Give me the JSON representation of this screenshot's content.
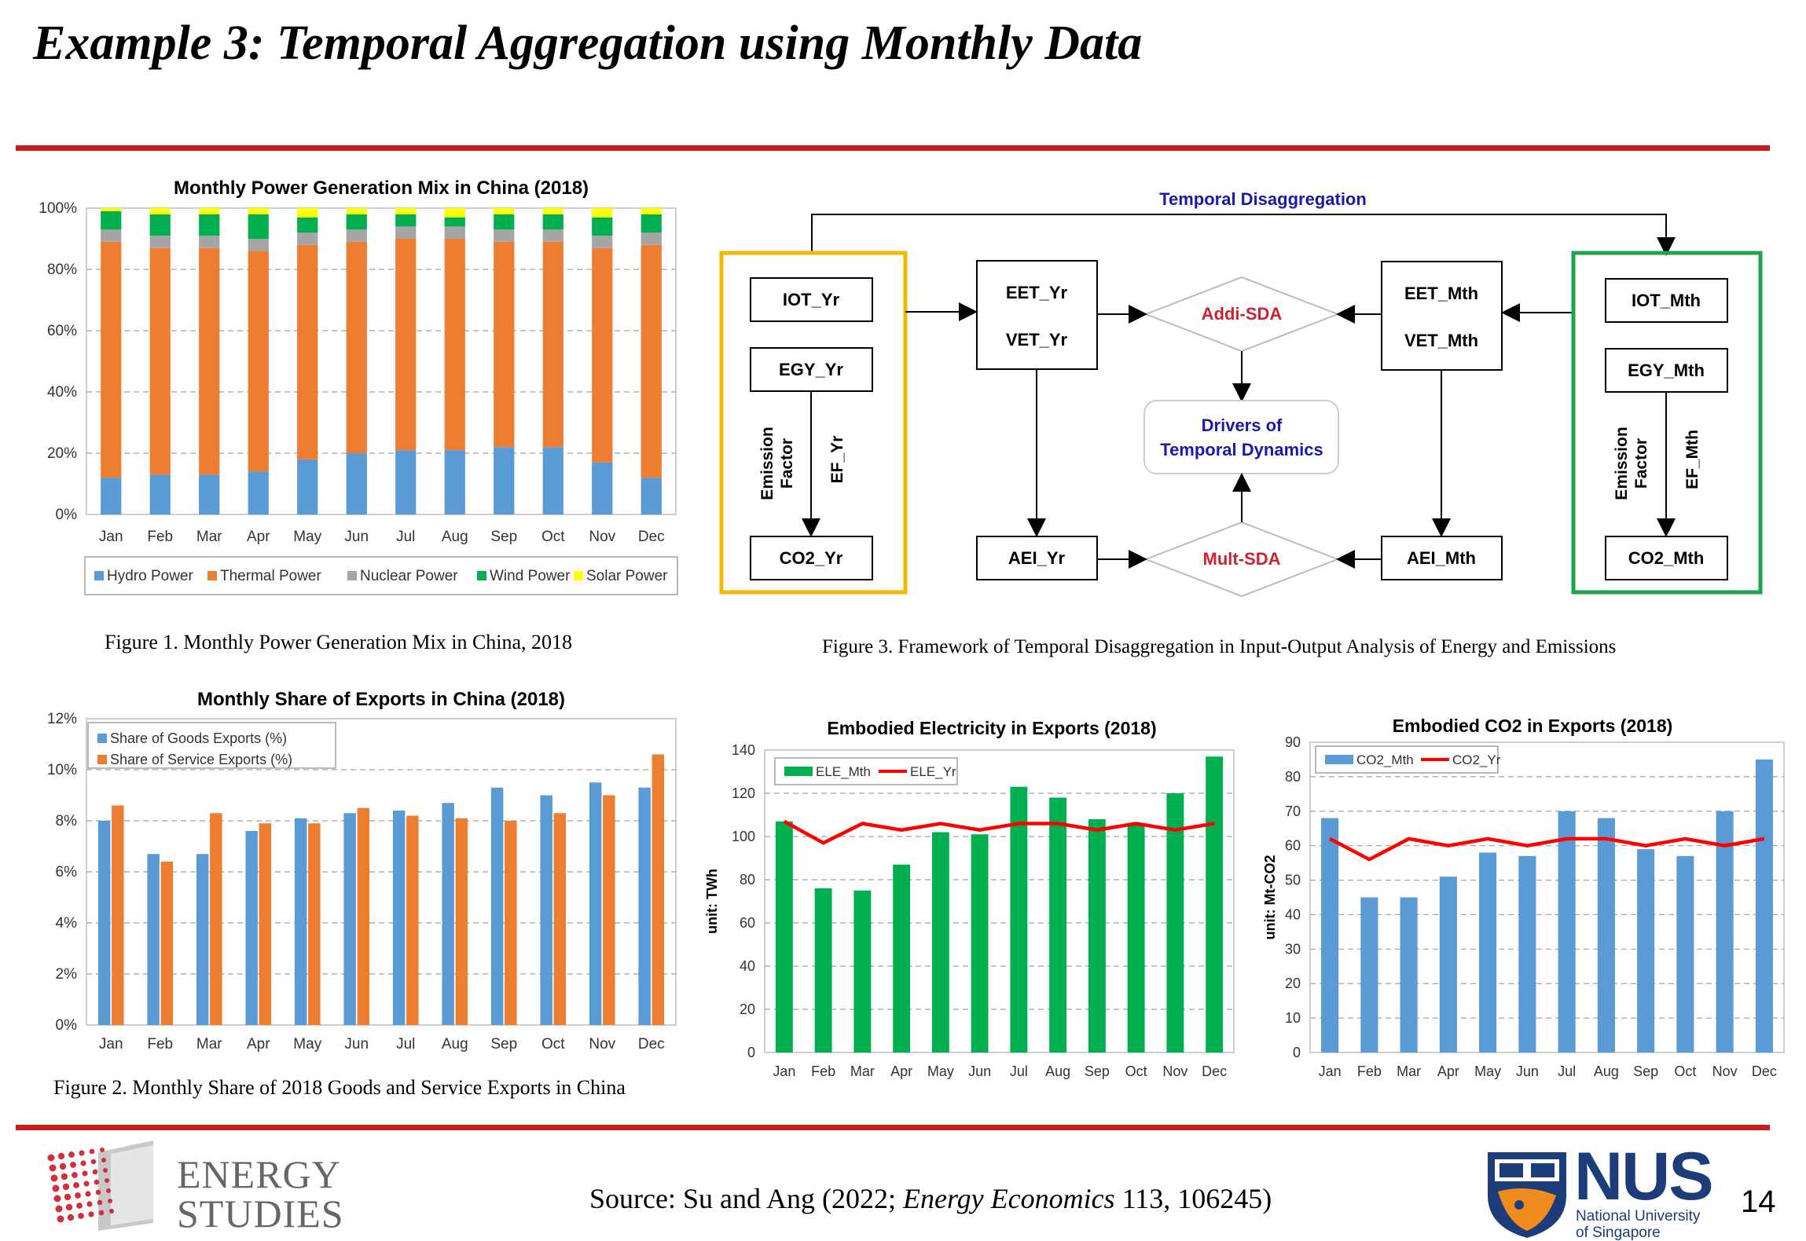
{
  "slide": {
    "title": "Example 3: Temporal Aggregation using Monthly Data",
    "accent_color": "#cc1a1a",
    "page_number": "14"
  },
  "captions": {
    "fig1": "Figure 1. Monthly Power Generation Mix in China, 2018",
    "fig2": "Figure 2. Monthly Share of 2018 Goods and Service Exports in China",
    "fig3": "Figure 3. Framework of Temporal Disaggregation in Input-Output Analysis of Energy and Emissions"
  },
  "footer": {
    "source_prefix": "Source: Su and Ang (2022; ",
    "source_journal": "Energy Economics",
    "source_suffix": " 113, 106245)",
    "logo_left_line1": "ENERGY",
    "logo_left_line2": "STUDIES",
    "logo_right_main": "NUS",
    "logo_right_line1": "National University",
    "logo_right_line2": "of Singapore"
  },
  "chart_data": [
    {
      "id": "power_mix",
      "type": "bar",
      "stacked": true,
      "title": "Monthly Power Generation Mix in China (2018)",
      "categories": [
        "Jan",
        "Feb",
        "Mar",
        "Apr",
        "May",
        "Jun",
        "Jul",
        "Aug",
        "Sep",
        "Oct",
        "Nov",
        "Dec"
      ],
      "series": [
        {
          "name": "Hydro Power",
          "color": "#5b9bd5",
          "values": [
            12,
            13,
            13,
            14,
            18,
            20,
            21,
            21,
            22,
            22,
            17,
            12
          ]
        },
        {
          "name": "Thermal Power",
          "color": "#ed7d31",
          "values": [
            77,
            74,
            74,
            72,
            70,
            69,
            69,
            69,
            67,
            67,
            70,
            76
          ]
        },
        {
          "name": "Nuclear Power",
          "color": "#a5a5a5",
          "values": [
            4,
            4,
            4,
            4,
            4,
            4,
            4,
            4,
            4,
            4,
            4,
            4
          ]
        },
        {
          "name": "Wind Power",
          "color": "#00b050",
          "values": [
            6,
            7,
            7,
            8,
            5,
            5,
            4,
            3,
            5,
            5,
            6,
            6
          ]
        },
        {
          "name": "Solar Power",
          "color": "#ffff00",
          "values": [
            1,
            2,
            2,
            2,
            3,
            2,
            2,
            3,
            2,
            2,
            3,
            2
          ]
        }
      ],
      "yticks": [
        "0%",
        "20%",
        "40%",
        "60%",
        "80%",
        "100%"
      ],
      "ylim": [
        0,
        100
      ],
      "grid": true,
      "legend": "bottom"
    },
    {
      "id": "export_share",
      "type": "bar",
      "title": "Monthly Share of Exports in China (2018)",
      "categories": [
        "Jan",
        "Feb",
        "Mar",
        "Apr",
        "May",
        "Jun",
        "Jul",
        "Aug",
        "Sep",
        "Oct",
        "Nov",
        "Dec"
      ],
      "series": [
        {
          "name": "Share of Goods Exports (%)",
          "color": "#5b9bd5",
          "values": [
            8.0,
            6.7,
            6.7,
            7.6,
            8.1,
            8.3,
            8.4,
            8.7,
            9.3,
            9.0,
            9.5,
            9.3
          ]
        },
        {
          "name": "Share of Service Exports (%)",
          "color": "#ed7d31",
          "values": [
            8.6,
            6.4,
            8.3,
            7.9,
            7.9,
            8.5,
            8.2,
            8.1,
            8.0,
            8.3,
            9.0,
            10.6
          ]
        }
      ],
      "yticks": [
        "0%",
        "2%",
        "4%",
        "6%",
        "8%",
        "10%",
        "12%"
      ],
      "ylim": [
        0,
        12
      ],
      "grid": true,
      "legend": "top-left"
    },
    {
      "id": "embodied_electricity",
      "type": "bar",
      "title": "Embodied Electricity in Exports (2018)",
      "ylabel": "unit: TWh",
      "categories": [
        "Jan",
        "Feb",
        "Mar",
        "Apr",
        "May",
        "Jun",
        "Jul",
        "Aug",
        "Sep",
        "Oct",
        "Nov",
        "Dec"
      ],
      "series": [
        {
          "name": "ELE_Mth",
          "type": "bar",
          "color": "#00b050",
          "values": [
            107,
            76,
            75,
            87,
            102,
            101,
            123,
            118,
            108,
            106,
            120,
            137
          ]
        },
        {
          "name": "ELE_Yr",
          "type": "line",
          "color": "#ff0000",
          "values": [
            107,
            97,
            106,
            103,
            106,
            103,
            106,
            106,
            103,
            106,
            103,
            106
          ]
        }
      ],
      "yticks": [
        "0",
        "20",
        "40",
        "60",
        "80",
        "100",
        "120",
        "140"
      ],
      "ylim": [
        0,
        140
      ],
      "grid": true,
      "legend": "top-left"
    },
    {
      "id": "embodied_co2",
      "type": "bar",
      "title": "Embodied CO2 in Exports (2018)",
      "ylabel": "unit: Mt-CO2",
      "categories": [
        "Jan",
        "Feb",
        "Mar",
        "Apr",
        "May",
        "Jun",
        "Jul",
        "Aug",
        "Sep",
        "Oct",
        "Nov",
        "Dec"
      ],
      "series": [
        {
          "name": "CO2_Mth",
          "type": "bar",
          "color": "#5b9bd5",
          "values": [
            68,
            45,
            45,
            51,
            58,
            57,
            70,
            68,
            59,
            57,
            70,
            85
          ]
        },
        {
          "name": "CO2_Yr",
          "type": "line",
          "color": "#ff0000",
          "values": [
            62,
            56,
            62,
            60,
            62,
            60,
            62,
            62,
            60,
            62,
            60,
            62
          ]
        }
      ],
      "yticks": [
        "0",
        "10",
        "20",
        "30",
        "40",
        "50",
        "60",
        "70",
        "80",
        "90"
      ],
      "ylim": [
        0,
        90
      ],
      "grid": true,
      "legend": "top-left"
    }
  ],
  "diagram": {
    "top_label": "Temporal Disaggregation",
    "left_boxes": {
      "iot": "IOT_Yr",
      "egy": "EGY_Yr",
      "co2": "CO2_Yr",
      "factor_line1": "Emission",
      "factor_line2": "Factor",
      "ef": "EF_Yr",
      "border_color": "#f5b800"
    },
    "right_boxes": {
      "iot": "IOT_Mth",
      "egy": "EGY_Mth",
      "co2": "CO2_Mth",
      "factor_line1": "Emission",
      "factor_line2": "Factor",
      "ef": "EF_Mth",
      "border_color": "#1aa64b"
    },
    "eet_yr": "EET_Yr",
    "vet_yr": "VET_Yr",
    "eet_mth": "EET_Mth",
    "vet_mth": "VET_Mth",
    "aei_yr": "AEI_Yr",
    "aei_mth": "AEI_Mth",
    "addi_sda": "Addi-SDA",
    "mult_sda": "Mult-SDA",
    "drivers_line1": "Drivers of",
    "drivers_line2": "Temporal Dynamics",
    "label_color": "#1a1aaa",
    "sda_color": "#cc2233"
  }
}
